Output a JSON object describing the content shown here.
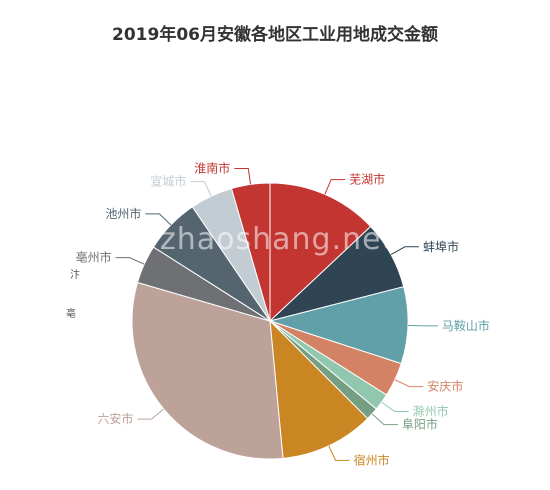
{
  "chart_data": {
    "type": "pie",
    "title": "2019年06月安徽各地区工业用地成交金额",
    "slices": [
      {
        "name": "芜湖市",
        "value": 13,
        "color": "#c23531"
      },
      {
        "name": "蚌埠市",
        "value": 8,
        "color": "#2f4554"
      },
      {
        "name": "马鞍山市",
        "value": 9,
        "color": "#61a0a8"
      },
      {
        "name": "安庆市",
        "value": 4,
        "color": "#d48265"
      },
      {
        "name": "滁州市",
        "value": 2,
        "color": "#91c7ae"
      },
      {
        "name": "阜阳市",
        "value": 1.5,
        "color": "#749f83"
      },
      {
        "name": "宿州市",
        "value": 11,
        "color": "#ca8622"
      },
      {
        "name": "六安市",
        "value": 31,
        "color": "#bda29a"
      },
      {
        "name": "亳州市",
        "value": 4.5,
        "color": "#6e7074"
      },
      {
        "name": "池州市",
        "value": 6.5,
        "color": "#546570"
      },
      {
        "name": "宣城市",
        "value": 5,
        "color": "#c4ccd3"
      },
      {
        "name": "淮南市",
        "value": 4.5,
        "color": "#c23531"
      }
    ]
  },
  "watermark": "zhaoshang.net",
  "side_labels": [
    "汴",
    "亳"
  ]
}
